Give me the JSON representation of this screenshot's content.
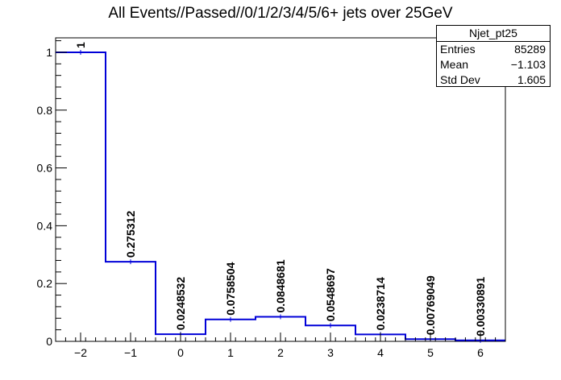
{
  "chart_data": {
    "type": "bar",
    "style": "step-histogram",
    "title": "All Events//Passed//0/1/2/3/4/5/6+ jets over 25GeV",
    "xlabel": "",
    "ylabel": "",
    "bin_edges": [
      -2.5,
      -1.5,
      -0.5,
      0.5,
      1.5,
      2.5,
      3.5,
      4.5,
      5.5,
      6.5
    ],
    "bin_centers": [
      -2,
      -1,
      0,
      1,
      2,
      3,
      4,
      5,
      6
    ],
    "values": [
      1,
      0.275312,
      0.0248532,
      0.0758504,
      0.0848681,
      0.0548697,
      0.0238714,
      0.00769049,
      0.00330891
    ],
    "value_labels": [
      "1",
      "0.275312",
      "0.0248532",
      "0.0758504",
      "0.0848681",
      "0.0548697",
      "0.0238714",
      "0.00769049",
      "0.00330891"
    ],
    "xlim": [
      -2.5,
      6.5
    ],
    "ylim": [
      0,
      1.05
    ],
    "x_ticks": [
      -2,
      -1,
      0,
      1,
      2,
      3,
      4,
      5,
      6
    ],
    "x_tick_labels": [
      "−2",
      "−1",
      "0",
      "1",
      "2",
      "3",
      "4",
      "5",
      "6"
    ],
    "y_ticks": [
      0,
      0.2,
      0.4,
      0.6,
      0.8,
      1
    ],
    "y_tick_labels": [
      "0",
      "0.2",
      "0.4",
      "0.6",
      "0.8",
      "1"
    ],
    "line_color": "#0000d8",
    "grid": false
  },
  "stats_box": {
    "name": "Njet_pt25",
    "entries_label": "Entries",
    "entries_value": "85289",
    "mean_label": "Mean",
    "mean_value": "−1.103",
    "stddev_label": "Std Dev",
    "stddev_value": "1.605"
  }
}
